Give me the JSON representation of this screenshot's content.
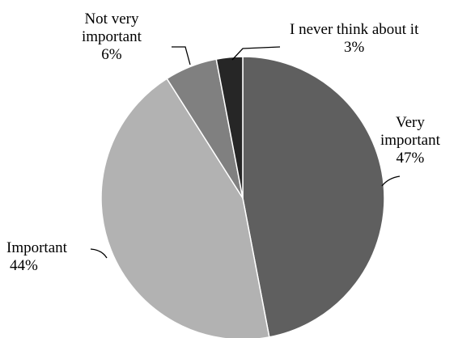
{
  "chart_data": {
    "type": "pie",
    "title": "",
    "start_angle_deg": 0,
    "direction": "clockwise",
    "slices": [
      {
        "label_lines": [
          "Very",
          "important"
        ],
        "value": 47,
        "value_label": "47%",
        "color": "#5f5f5f"
      },
      {
        "label_lines": [
          "Important"
        ],
        "value": 44,
        "value_label": "44%",
        "color": "#b2b2b2"
      },
      {
        "label_lines": [
          "Not very",
          "important"
        ],
        "value": 6,
        "value_label": "6%",
        "color": "#808080"
      },
      {
        "label_lines": [
          "I never think about it"
        ],
        "value": 3,
        "value_label": "3%",
        "color": "#262626"
      }
    ],
    "legend": "none",
    "slice_border_color": "#ffffff"
  }
}
